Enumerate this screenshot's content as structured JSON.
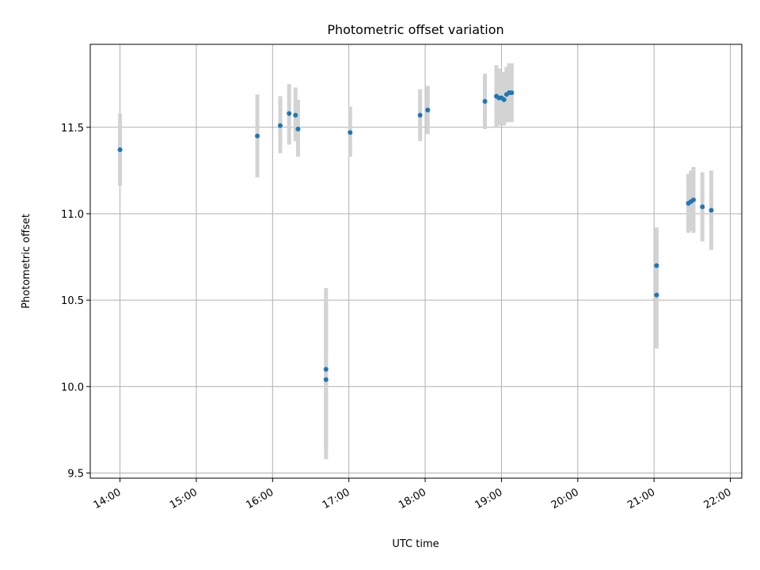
{
  "chart_data": {
    "type": "scatter",
    "title": "Photometric offset variation",
    "xlabel": "UTC time",
    "ylabel": "Photometric offset",
    "x_ticks": [
      "14:00",
      "15:00",
      "16:00",
      "17:00",
      "18:00",
      "19:00",
      "20:00",
      "21:00",
      "22:00"
    ],
    "x_tick_hours": [
      14,
      15,
      16,
      17,
      18,
      19,
      20,
      21,
      22
    ],
    "y_ticks": [
      "9.5",
      "10.0",
      "10.5",
      "11.0",
      "11.5"
    ],
    "y_tick_values": [
      9.5,
      10.0,
      10.5,
      11.0,
      11.5
    ],
    "xlim_hours": [
      13.61,
      22.15
    ],
    "ylim": [
      9.47,
      11.98
    ],
    "grid": true,
    "point_color": "#1f77b4",
    "errorbar_color": "#d3d3d3",
    "points": [
      {
        "t": "14:00",
        "y": 11.37,
        "lo": 11.16,
        "hi": 11.58
      },
      {
        "t": "15:48",
        "y": 11.45,
        "lo": 11.21,
        "hi": 11.69
      },
      {
        "t": "16:06",
        "y": 11.51,
        "lo": 11.35,
        "hi": 11.68
      },
      {
        "t": "16:13",
        "y": 11.58,
        "lo": 11.4,
        "hi": 11.75
      },
      {
        "t": "16:18",
        "y": 11.57,
        "lo": 11.42,
        "hi": 11.73
      },
      {
        "t": "16:20",
        "y": 11.49,
        "lo": 11.33,
        "hi": 11.66
      },
      {
        "t": "16:42",
        "y": 10.1,
        "lo": 9.63,
        "hi": 10.57
      },
      {
        "t": "16:42",
        "y": 10.04,
        "lo": 9.58,
        "hi": 10.5
      },
      {
        "t": "17:01",
        "y": 11.47,
        "lo": 11.33,
        "hi": 11.62
      },
      {
        "t": "17:56",
        "y": 11.57,
        "lo": 11.42,
        "hi": 11.72
      },
      {
        "t": "18:02",
        "y": 11.6,
        "lo": 11.46,
        "hi": 11.74
      },
      {
        "t": "18:47",
        "y": 11.65,
        "lo": 11.49,
        "hi": 11.81
      },
      {
        "t": "18:56",
        "y": 11.68,
        "lo": 11.5,
        "hi": 11.86
      },
      {
        "t": "18:58",
        "y": 11.67,
        "lo": 11.51,
        "hi": 11.84
      },
      {
        "t": "19:00",
        "y": 11.67,
        "lo": 11.52,
        "hi": 11.82
      },
      {
        "t": "19:02",
        "y": 11.66,
        "lo": 11.51,
        "hi": 11.82
      },
      {
        "t": "19:04",
        "y": 11.69,
        "lo": 11.53,
        "hi": 11.85
      },
      {
        "t": "19:06",
        "y": 11.7,
        "lo": 11.53,
        "hi": 11.87
      },
      {
        "t": "19:08",
        "y": 11.7,
        "lo": 11.53,
        "hi": 11.87
      },
      {
        "t": "21:02",
        "y": 10.7,
        "lo": 10.48,
        "hi": 10.92
      },
      {
        "t": "21:02",
        "y": 10.53,
        "lo": 10.22,
        "hi": 10.84
      },
      {
        "t": "21:27",
        "y": 11.06,
        "lo": 10.89,
        "hi": 11.23
      },
      {
        "t": "21:29",
        "y": 11.07,
        "lo": 10.9,
        "hi": 11.25
      },
      {
        "t": "21:31",
        "y": 11.08,
        "lo": 10.89,
        "hi": 11.27
      },
      {
        "t": "21:38",
        "y": 11.04,
        "lo": 10.84,
        "hi": 11.24
      },
      {
        "t": "21:45",
        "y": 11.02,
        "lo": 10.79,
        "hi": 11.25
      }
    ]
  }
}
